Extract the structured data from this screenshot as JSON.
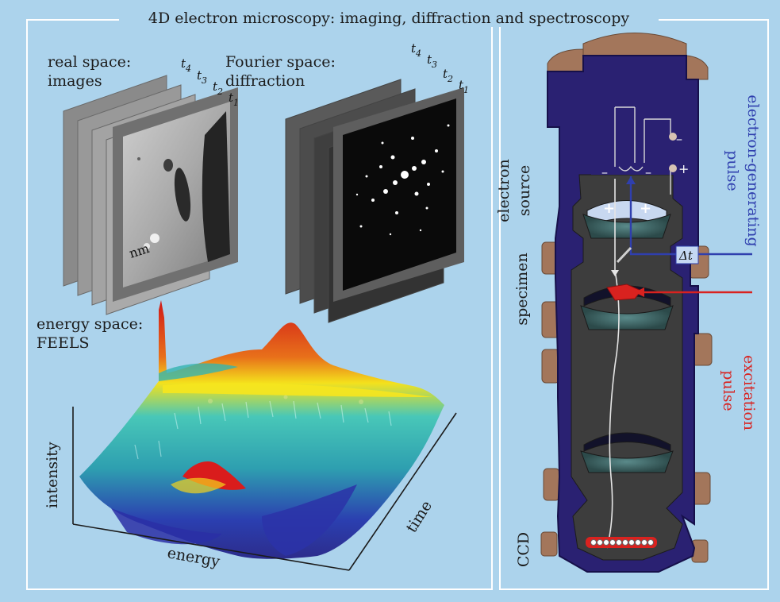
{
  "title": "4D electron microscopy: imaging, diffraction and spectroscopy",
  "real_space": {
    "line1": "real space:",
    "line2": "images",
    "scale": "nm"
  },
  "fourier_space": {
    "line1": "Fourier space:",
    "line2": "diffraction"
  },
  "time_labels": [
    "t",
    "t",
    "t",
    "t"
  ],
  "time_subscripts": [
    "4",
    "3",
    "2",
    "1"
  ],
  "energy_space": {
    "line1": "energy space:",
    "line2": "FEELS"
  },
  "axes": {
    "intensity": "intensity",
    "energy": "energy",
    "time": "time"
  },
  "column": {
    "electron_source": "electron source",
    "specimen": "specimen",
    "ccd": "CCD",
    "electron_generating_pulse": "electron-generating pulse",
    "excitation_pulse": "excitation pulse",
    "delta_t": "Δt",
    "minus": "–",
    "plus": "+"
  },
  "colors": {
    "background": "#acd3ec",
    "column": "#2a2172",
    "blue_pulse": "#2f3fae",
    "red_pulse": "#d9221f"
  }
}
